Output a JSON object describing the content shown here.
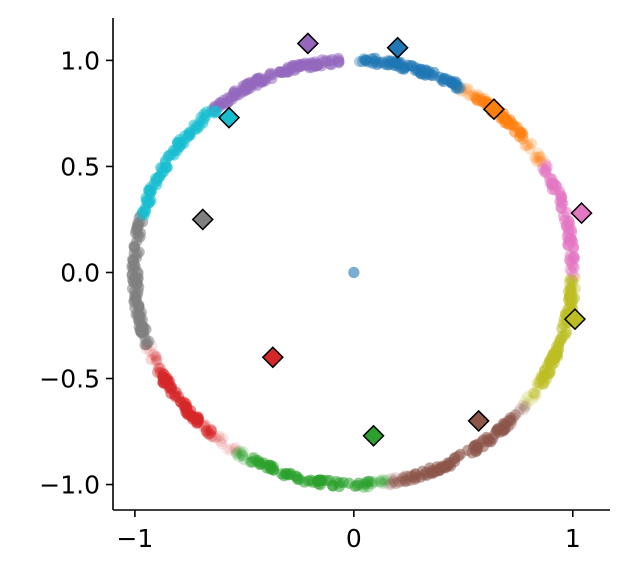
{
  "chart_data": {
    "type": "scatter",
    "title": "",
    "xlabel": "",
    "ylabel": "",
    "xlim": [
      -1.1,
      1.17
    ],
    "ylim": [
      -1.12,
      1.2
    ],
    "x_ticks": [
      {
        "value": -1,
        "label": "−1"
      },
      {
        "value": 0,
        "label": "0"
      },
      {
        "value": 1,
        "label": "1"
      }
    ],
    "y_ticks": [
      {
        "value": 1.0,
        "label": "1.0"
      },
      {
        "value": 0.5,
        "label": "0.5"
      },
      {
        "value": 0.0,
        "label": "0.0"
      },
      {
        "value": -0.5,
        "label": "−0.5"
      },
      {
        "value": -1.0,
        "label": "−1.0"
      }
    ],
    "grid": false,
    "circle_radius": 1.0,
    "center_point": {
      "x": 0.0,
      "y": 0.0,
      "color": "#1f77b4"
    },
    "clusters": [
      {
        "color": "#1f77b4",
        "center_angle_deg": 75,
        "arc_width_deg": 12,
        "diamond": {
          "x": 0.2,
          "y": 1.06
        }
      },
      {
        "color": "#ff7f0e",
        "center_angle_deg": 46,
        "arc_width_deg": 6,
        "diamond": {
          "x": 0.64,
          "y": 0.77
        }
      },
      {
        "color": "#e377c2",
        "center_angle_deg": 15,
        "arc_width_deg": 14,
        "diamond": {
          "x": 1.04,
          "y": 0.28
        }
      },
      {
        "color": "#bcbd22",
        "center_angle_deg": -17,
        "arc_width_deg": 12,
        "diamond": {
          "x": 1.01,
          "y": -0.22
        }
      },
      {
        "color": "#8c564b",
        "center_angle_deg": -60,
        "arc_width_deg": 14,
        "diamond": {
          "x": 0.57,
          "y": -0.7
        }
      },
      {
        "color": "#2ca02c",
        "center_angle_deg": -102,
        "arc_width_deg": 14,
        "diamond": {
          "x": 0.09,
          "y": -0.77
        }
      },
      {
        "color": "#d62728",
        "center_angle_deg": -143,
        "arc_width_deg": 8,
        "diamond": {
          "x": -0.37,
          "y": -0.4
        }
      },
      {
        "color": "#7f7f7f",
        "center_angle_deg": -177,
        "arc_width_deg": 20,
        "diamond": {
          "x": -0.69,
          "y": 0.25
        }
      },
      {
        "color": "#17becf",
        "center_angle_deg": 147,
        "arc_width_deg": 18,
        "diamond": {
          "x": -0.57,
          "y": 0.73
        }
      },
      {
        "color": "#9467bd",
        "center_angle_deg": 112,
        "arc_width_deg": 18,
        "diamond": {
          "x": -0.21,
          "y": 1.08
        }
      }
    ]
  }
}
